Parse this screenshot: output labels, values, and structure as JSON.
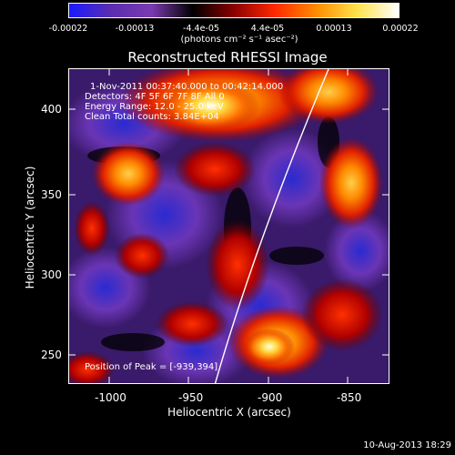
{
  "colorbar": {
    "ticks": [
      "-0.00022",
      "-0.00013",
      "-4.4e-05",
      "4.4e-05",
      "0.00013",
      "0.00022"
    ],
    "units": "(photons cm⁻² s⁻¹ asec⁻²)",
    "colors": [
      "#1a1aff",
      "#5a2db0",
      "#7a3bb0",
      "#000000",
      "#8b0000",
      "#ff2a00",
      "#ff8c00",
      "#ffe34d",
      "#ffffff"
    ]
  },
  "title": "Reconstructed RHESSI Image",
  "info": {
    "time_range": "1-Nov-2011 00:37:40.000 to 00:42:14.000",
    "detectors": "Detectors: 4F 5F 6F 7F 8F   All 0",
    "energy_range": "Energy Range: 12.0 - 25.0 keV",
    "clean": "Clean    Total counts: 3.84E+04",
    "peak": "Position of Peak = [-939,394]"
  },
  "axes": {
    "xlabel": "Heliocentric X (arcsec)",
    "ylabel": "Heliocentric Y (arcsec)",
    "xticks": [
      "-1000",
      "-950",
      "-900",
      "-850"
    ],
    "yticks": [
      "250",
      "300",
      "350",
      "400"
    ]
  },
  "timestamp": "10-Aug-2013 18:29"
}
